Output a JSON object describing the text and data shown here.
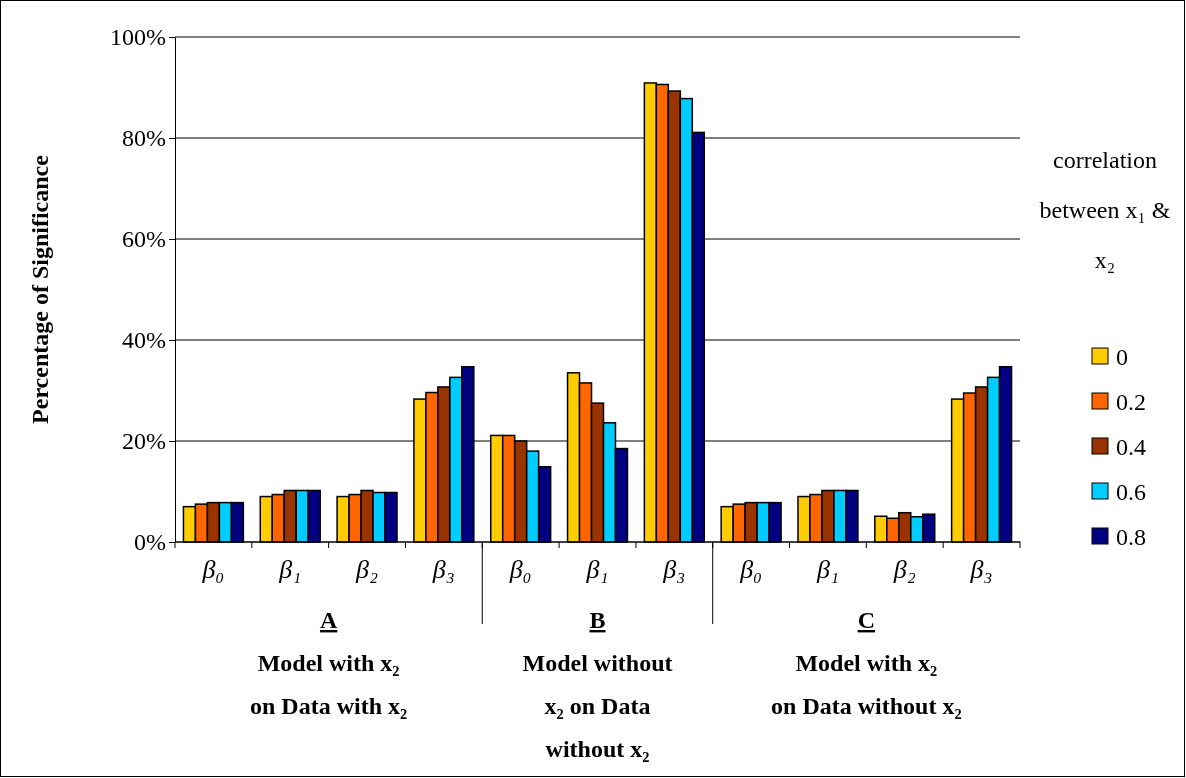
{
  "chart_data": {
    "type": "bar",
    "ylabel": "Percentage of Significance",
    "legend_title": "correlation between x₁ & x₂",
    "categories": [
      "β₀",
      "β₁",
      "β₂",
      "β₃",
      "β₀",
      "β₁",
      "β₃",
      "β₀",
      "β₁",
      "β₂",
      "β₃"
    ],
    "series": [
      {
        "name": "0",
        "color": "#ffcc00",
        "values": [
          7.0,
          9.0,
          9.0,
          28.3,
          21.1,
          33.5,
          90.9,
          7.0,
          9.0,
          5.1,
          28.3
        ]
      },
      {
        "name": "0.2",
        "color": "#ff6600",
        "values": [
          7.5,
          9.4,
          9.4,
          29.6,
          21.1,
          31.5,
          90.6,
          7.5,
          9.4,
          4.7,
          29.5
        ]
      },
      {
        "name": "0.4",
        "color": "#993300",
        "values": [
          7.8,
          10.2,
          10.2,
          30.7,
          20.0,
          27.5,
          89.3,
          7.8,
          10.2,
          5.8,
          30.7
        ]
      },
      {
        "name": "0.6",
        "color": "#00ccff",
        "values": [
          7.8,
          10.2,
          9.8,
          32.6,
          18.0,
          23.6,
          87.8,
          7.8,
          10.2,
          5.0,
          32.6
        ]
      },
      {
        "name": "0.8",
        "color": "#000080",
        "values": [
          7.8,
          10.2,
          9.8,
          34.7,
          14.9,
          18.5,
          81.1,
          7.8,
          10.2,
          5.5,
          34.7
        ]
      }
    ],
    "ylim": [
      0,
      100
    ],
    "yticks": [
      {
        "value": 0,
        "label": "0%"
      },
      {
        "value": 20,
        "label": "20%"
      },
      {
        "value": 40,
        "label": "40%"
      },
      {
        "value": 60,
        "label": "60%"
      },
      {
        "value": 80,
        "label": "80%"
      },
      {
        "value": 100,
        "label": "100%"
      }
    ],
    "grid": "y",
    "legend": "right",
    "annotations": [
      "A\nModel with x₂\non Data with x₂",
      "B\nModel without\nx₂ on Data\nwithout x₂",
      "C\nModel with x₂\non Data without x₂"
    ]
  }
}
